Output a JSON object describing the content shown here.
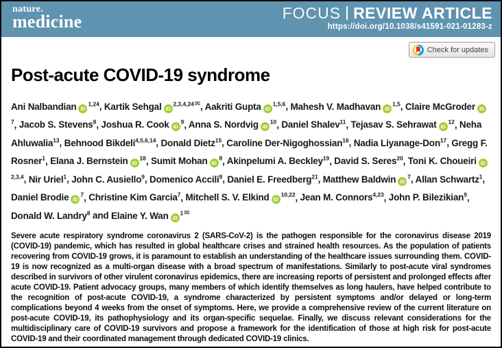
{
  "colors": {
    "band": "#5f93af",
    "orcid_green": "#a6ce39",
    "crossmark_yellow": "#fdb913",
    "crossmark_blue": "#00a3e0",
    "crossmark_red": "#d63426"
  },
  "header": {
    "journal_line1": "nature.",
    "journal_line2": "medicine",
    "category_light": "FOCUS",
    "category_bold": "REVIEW ARTICLE",
    "doi": "https://doi.org/10.1038/s41591-021-01283-z"
  },
  "crossmark": {
    "label": "Check for updates"
  },
  "article": {
    "title": "Post-acute COVID-19 syndrome",
    "abstract": "Severe acute respiratory syndrome coronavirus 2 (SARS-CoV-2) is the pathogen responsible for the coronavirus disease 2019 (COVID-19) pandemic, which has resulted in global healthcare crises and strained health resources. As the population of patients recovering from COVID-19 grows, it is paramount to establish an understanding of the healthcare issues surrounding them. COVID-19 is now recognized as a multi-organ disease with a broad spectrum of manifestations. Similarly to post-acute viral syndromes described in survivors of other virulent coronavirus epidemics, there are increasing reports of persistent and prolonged effects after acute COVID-19. Patient advocacy groups, many members of which identify themselves as long haulers, have helped contribute to the recognition of post-acute COVID-19, a syndrome characterized by persistent symptoms and/or delayed or long-term complications beyond 4 weeks from the onset of symptoms. Here, we provide a comprehensive review of the current literature on post-acute COVID-19, its pathophysiology and its organ-specific sequelae. Finally, we discuss relevant considerations for the multidisciplinary care of COVID-19 survivors and propose a framework for the identification of those at high risk for post-acute COVID-19 and their coordinated management through dedicated COVID-19 clinics."
  },
  "authors": [
    {
      "name": "Ani Nalbandian",
      "orcid": true,
      "sup": "1,24",
      "envelope": false
    },
    {
      "name": "Kartik Sehgal",
      "orcid": true,
      "sup": "2,3,4,24",
      "envelope": true
    },
    {
      "name": "Aakriti Gupta",
      "orcid": true,
      "sup": "1,5,6",
      "envelope": false
    },
    {
      "name": "Mahesh V. Madhavan",
      "orcid": true,
      "sup": "1,5",
      "envelope": false
    },
    {
      "name": "Claire McGroder",
      "orcid": true,
      "sup": "7",
      "envelope": false
    },
    {
      "name": "Jacob S. Stevens",
      "orcid": false,
      "sup": "8",
      "envelope": false
    },
    {
      "name": "Joshua R. Cook",
      "orcid": true,
      "sup": "9",
      "envelope": false
    },
    {
      "name": "Anna S. Nordvig",
      "orcid": true,
      "sup": "10",
      "envelope": false
    },
    {
      "name": "Daniel Shalev",
      "orcid": false,
      "sup": "11",
      "envelope": false
    },
    {
      "name": "Tejasav S. Sehrawat",
      "orcid": true,
      "sup": "12",
      "envelope": false
    },
    {
      "name": "Neha Ahluwalia",
      "orcid": false,
      "sup": "13",
      "envelope": false
    },
    {
      "name": "Behnood Bikdeli",
      "orcid": false,
      "sup": "4,5,6,14",
      "envelope": false
    },
    {
      "name": "Donald Dietz",
      "orcid": false,
      "sup": "15",
      "envelope": false
    },
    {
      "name": "Caroline Der-Nigoghossian",
      "orcid": false,
      "sup": "16",
      "envelope": false
    },
    {
      "name": "Nadia Liyanage-Don",
      "orcid": false,
      "sup": "17",
      "envelope": false
    },
    {
      "name": "Gregg F. Rosner",
      "orcid": false,
      "sup": "1",
      "envelope": false
    },
    {
      "name": "Elana J. Bernstein",
      "orcid": true,
      "sup": "18",
      "envelope": false
    },
    {
      "name": "Sumit Mohan",
      "orcid": true,
      "sup": "8",
      "envelope": false
    },
    {
      "name": "Akinpelumi A. Beckley",
      "orcid": false,
      "sup": "19",
      "envelope": false
    },
    {
      "name": "David S. Seres",
      "orcid": false,
      "sup": "20",
      "envelope": false
    },
    {
      "name": "Toni K. Choueiri",
      "orcid": true,
      "sup": "2,3,4",
      "envelope": false
    },
    {
      "name": "Nir Uriel",
      "orcid": false,
      "sup": "1",
      "envelope": false
    },
    {
      "name": "John C. Ausiello",
      "orcid": false,
      "sup": "9",
      "envelope": false
    },
    {
      "name": "Domenico Accili",
      "orcid": false,
      "sup": "9",
      "envelope": false
    },
    {
      "name": "Daniel E. Freedberg",
      "orcid": false,
      "sup": "21",
      "envelope": false
    },
    {
      "name": "Matthew Baldwin",
      "orcid": true,
      "sup": "7",
      "envelope": false
    },
    {
      "name": "Allan Schwartz",
      "orcid": false,
      "sup": "1",
      "envelope": false
    },
    {
      "name": "Daniel Brodie",
      "orcid": true,
      "sup": "7",
      "envelope": false
    },
    {
      "name": "Christine Kim Garcia",
      "orcid": false,
      "sup": "7",
      "envelope": false
    },
    {
      "name": "Mitchell S. V. Elkind",
      "orcid": true,
      "sup": "10,22",
      "envelope": false
    },
    {
      "name": "Jean M. Connors",
      "orcid": false,
      "sup": "4,23",
      "envelope": false
    },
    {
      "name": "John P. Bilezikian",
      "orcid": false,
      "sup": "9",
      "envelope": false
    },
    {
      "name": "Donald W. Landry",
      "orcid": false,
      "sup": "8",
      "envelope": false
    },
    {
      "name": "Elaine Y. Wan",
      "orcid": true,
      "sup": "1",
      "envelope": true
    }
  ]
}
